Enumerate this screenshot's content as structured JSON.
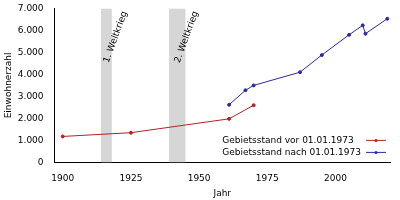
{
  "chart_data": {
    "type": "line",
    "x_label": "Jahr",
    "y_label": "Einwohnerzahl",
    "series": [
      {
        "name": "Gebietsstand vor 01.01.1973",
        "color": "#b22222",
        "marker": "dot",
        "x": [
          1900,
          1925,
          1961,
          1970
        ],
        "values": [
          1180,
          1350,
          1980,
          2600
        ]
      },
      {
        "name": "Gebietsstand nach 01.01.1973",
        "color": "#2a2aa8",
        "marker": "dot",
        "x": [
          1961,
          1967,
          1970,
          1987,
          1995,
          2005,
          2010,
          2011,
          2019
        ],
        "values": [
          2620,
          3280,
          3500,
          4100,
          4880,
          5800,
          6230,
          5850,
          6530
        ]
      }
    ],
    "xlim": [
      1897,
      2020
    ],
    "xticks": [
      1900,
      1925,
      1950,
      1975,
      2000
    ],
    "ylim": [
      0,
      7000
    ],
    "yticks": [
      0,
      {
        "value": 1000,
        "label": "1.000"
      },
      {
        "value": 2000,
        "label": "2.000"
      },
      {
        "value": 3000,
        "label": "3.000"
      },
      {
        "value": 4000,
        "label": "4.000"
      },
      {
        "value": 5000,
        "label": "5.000"
      },
      {
        "value": 6000,
        "label": "6.000"
      },
      {
        "value": 7000,
        "label": "7.000"
      }
    ],
    "grid": false,
    "legend": "lower right",
    "annotations": [
      {
        "label": "1. Weltkrieg",
        "x0": 1914,
        "x1": 1918
      },
      {
        "label": "2. Weltkrieg",
        "x0": 1939,
        "x1": 1945
      }
    ]
  }
}
